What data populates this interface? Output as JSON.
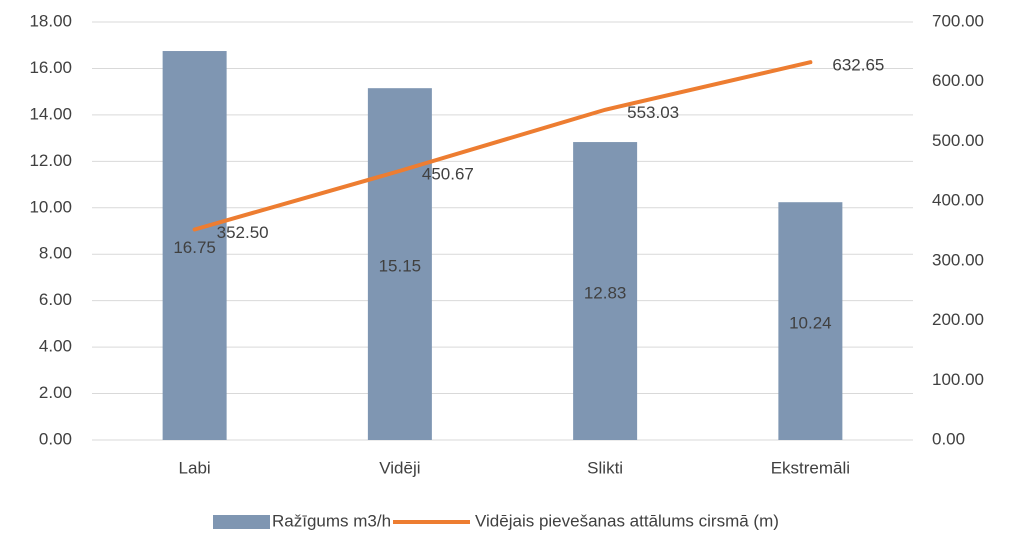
{
  "chart_data": {
    "type": "bar_line",
    "categories": [
      "Labi",
      "Vidēji",
      "Slikti",
      "Ekstremāli"
    ],
    "series": [
      {
        "name": "Ražīgums m3/h",
        "color": "#7f96b2",
        "values": [
          16.75,
          15.15,
          12.83,
          10.24
        ]
      },
      {
        "name": "Vidējais pievešanas attālums cirsmā (m)",
        "color": "#ed7d31",
        "axis": "y2",
        "values": [
          352.5,
          450.67,
          553.03,
          632.65
        ],
        "value_labels": [
          "352.50",
          "450.67",
          "553.03",
          "632.65"
        ]
      }
    ],
    "ylim": [
      0,
      18
    ],
    "yticks": [
      {
        "value": 0,
        "label": "0.00"
      },
      {
        "value": 2,
        "label": "2.00"
      },
      {
        "value": 4,
        "label": "4.00"
      },
      {
        "value": 6,
        "label": "6.00"
      },
      {
        "value": 8,
        "label": "8.00"
      },
      {
        "value": 10,
        "label": "10.00"
      },
      {
        "value": 12,
        "label": "12.00"
      },
      {
        "value": 14,
        "label": "14.00"
      },
      {
        "value": 16,
        "label": "16.00"
      },
      {
        "value": 18,
        "label": "18.00"
      }
    ],
    "y2lim": [
      0,
      700
    ],
    "y2ticks": [
      {
        "value": 0,
        "label": "0.00"
      },
      {
        "value": 100,
        "label": "100.00"
      },
      {
        "value": 200,
        "label": "200.00"
      },
      {
        "value": 300,
        "label": "300.00"
      },
      {
        "value": 400,
        "label": "400.00"
      },
      {
        "value": 500,
        "label": "500.00"
      },
      {
        "value": 600,
        "label": "600.00"
      },
      {
        "value": 700,
        "label": "700.00"
      }
    ],
    "grid": true
  }
}
